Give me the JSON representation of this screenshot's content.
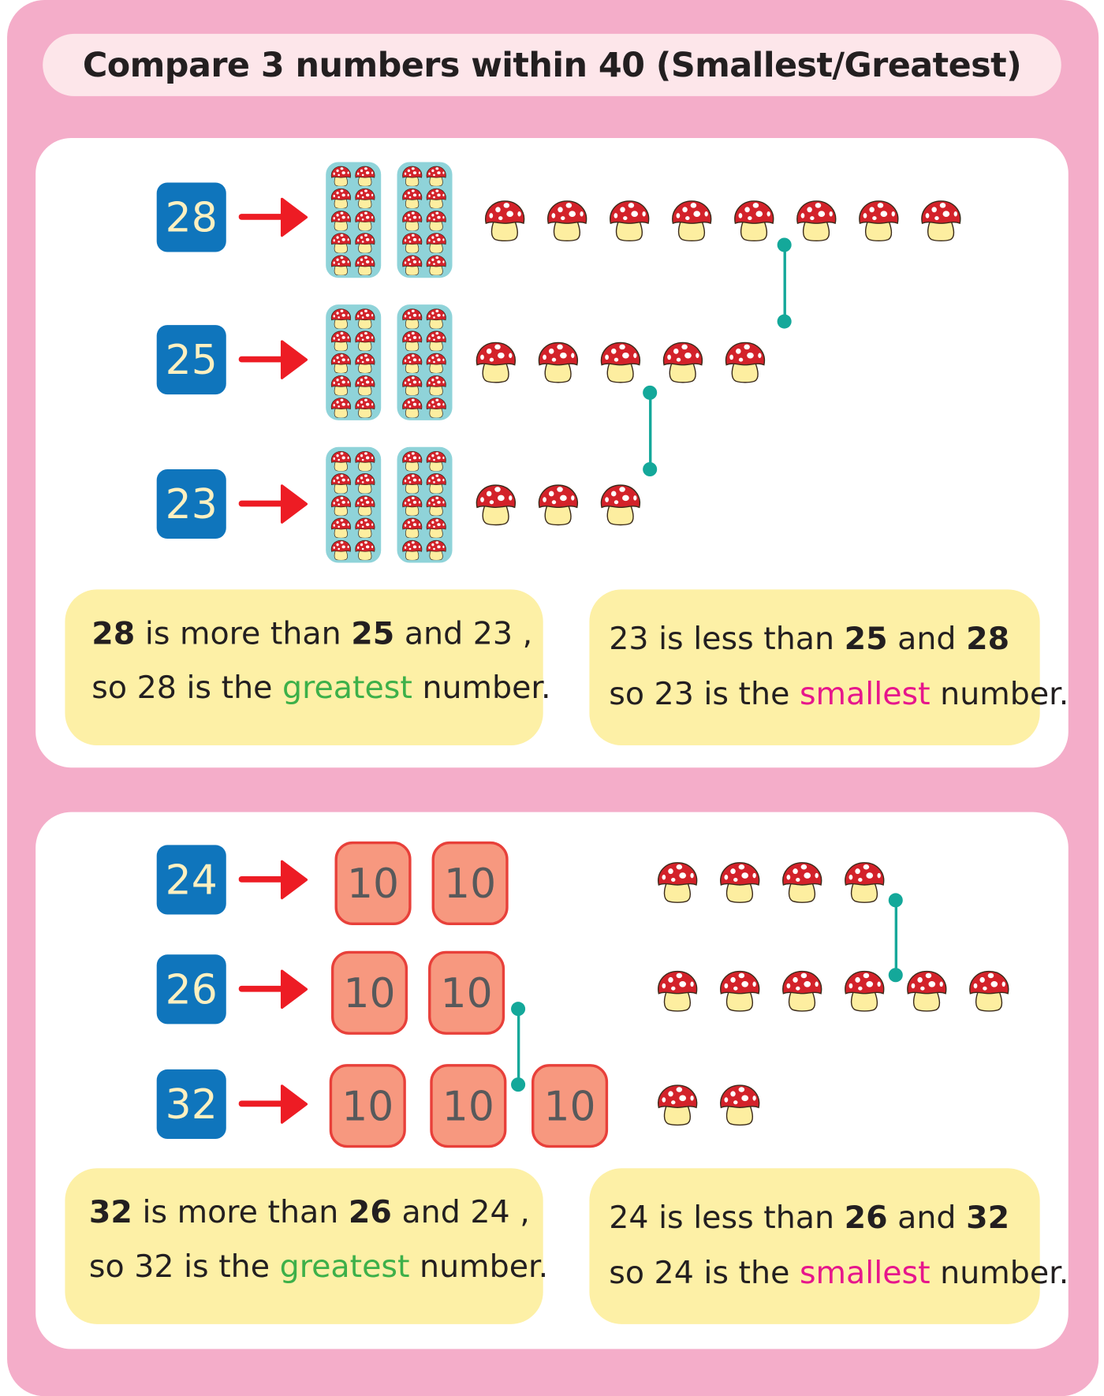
{
  "title": "Compare 3 numbers within 40 (Smallest/Greatest)",
  "colors": {
    "frame": "#f4adc9",
    "number_box": "#0f75bc",
    "arrow": "#ed1c24",
    "ten_frame": "#8fd3d9",
    "ten_block": "#f7987f",
    "connector": "#14a89a",
    "note": "#fdf0a6",
    "greatest": "#3db049",
    "smallest": "#e6168c"
  },
  "sections": [
    {
      "tens_style": "ten-frame-of-mushrooms",
      "rows": [
        {
          "number": "28",
          "tens": 2,
          "ones": 8
        },
        {
          "number": "25",
          "tens": 2,
          "ones": 5
        },
        {
          "number": "23",
          "tens": 2,
          "ones": 3
        }
      ],
      "greatest_note": {
        "n1": "28",
        "t1": " is more than ",
        "n2": "25",
        "t2": " and 23 ,",
        "line2_prefix": "so 28 is the ",
        "keyword": "greatest",
        "line2_suffix": " number."
      },
      "smallest_note": {
        "t0": "23 is less than ",
        "n2": "25",
        "t1": " and ",
        "n3": "28",
        "line2_prefix": "so 23 is the ",
        "keyword": "smallest",
        "line2_suffix": " number."
      }
    },
    {
      "tens_style": "ten-block",
      "ten_label": "10",
      "rows": [
        {
          "number": "24",
          "tens": 2,
          "ones": 4
        },
        {
          "number": "26",
          "tens": 2,
          "ones": 6
        },
        {
          "number": "32",
          "tens": 3,
          "ones": 2
        }
      ],
      "greatest_note": {
        "n1": "32",
        "t1": " is more than ",
        "n2": "26",
        "t2": " and 24 ,",
        "line2_prefix": "so 32 is the ",
        "keyword": "greatest",
        "line2_suffix": " number."
      },
      "smallest_note": {
        "t0": "24 is less than ",
        "n2": "26",
        "t1": " and ",
        "n3": "32",
        "line2_prefix": "so 24 is the ",
        "keyword": "smallest",
        "line2_suffix": " number."
      }
    }
  ]
}
